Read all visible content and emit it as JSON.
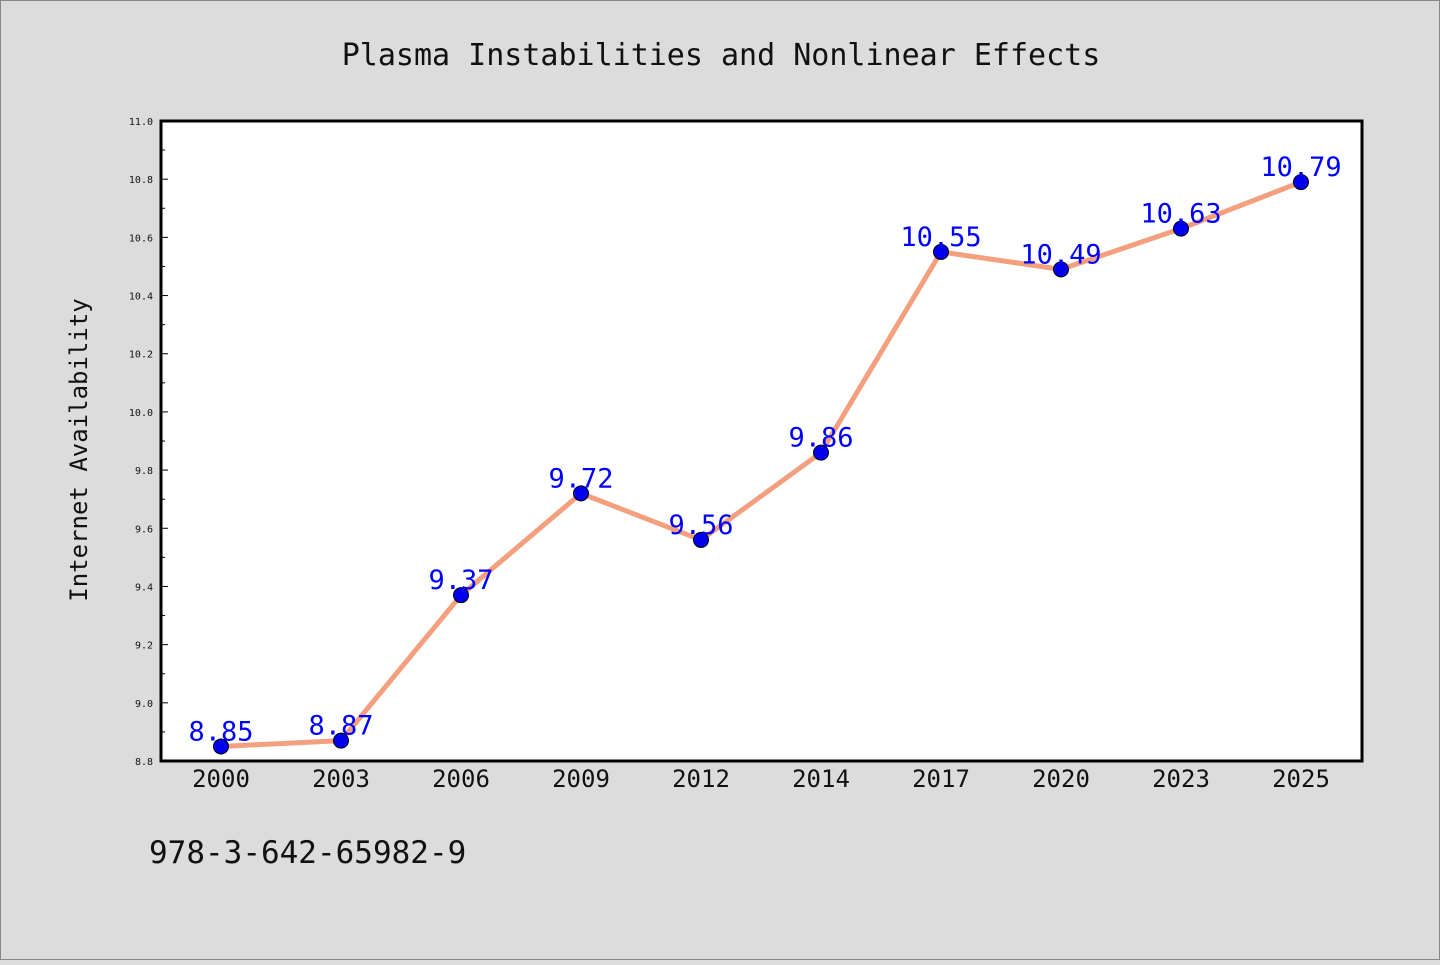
{
  "colors": {
    "background": "#dcdcdc",
    "plot_background": "#ffffff",
    "line": "#f4a07e",
    "marker": "#0000ee",
    "data_label": "#0000ff",
    "text": "#111111"
  },
  "chart_data": {
    "type": "line",
    "title": "Plasma Instabilities and Nonlinear Effects",
    "xlabel": "",
    "ylabel": "Internet Availability",
    "categories": [
      "2000",
      "2003",
      "2006",
      "2009",
      "2012",
      "2014",
      "2017",
      "2020",
      "2023",
      "2025"
    ],
    "series": [
      {
        "values": [
          8.85,
          8.87,
          9.37,
          9.72,
          9.56,
          9.86,
          10.55,
          10.49,
          10.63,
          10.79
        ]
      }
    ],
    "data_labels": [
      "8.85",
      "8.87",
      "9.37",
      "9.72",
      "9.56",
      "9.86",
      "10.55",
      "10.49",
      "10.63",
      "10.79"
    ],
    "ylim": [
      8.8,
      11.0
    ],
    "yticks": [
      "8.8",
      "9.0",
      "9.2",
      "9.4",
      "9.6",
      "9.8",
      "10.0",
      "10.2",
      "10.4",
      "10.6",
      "10.8",
      "11.0"
    ],
    "grid": false,
    "legend": "none"
  },
  "footer": {
    "isbn": "978-3-642-65982-9"
  }
}
